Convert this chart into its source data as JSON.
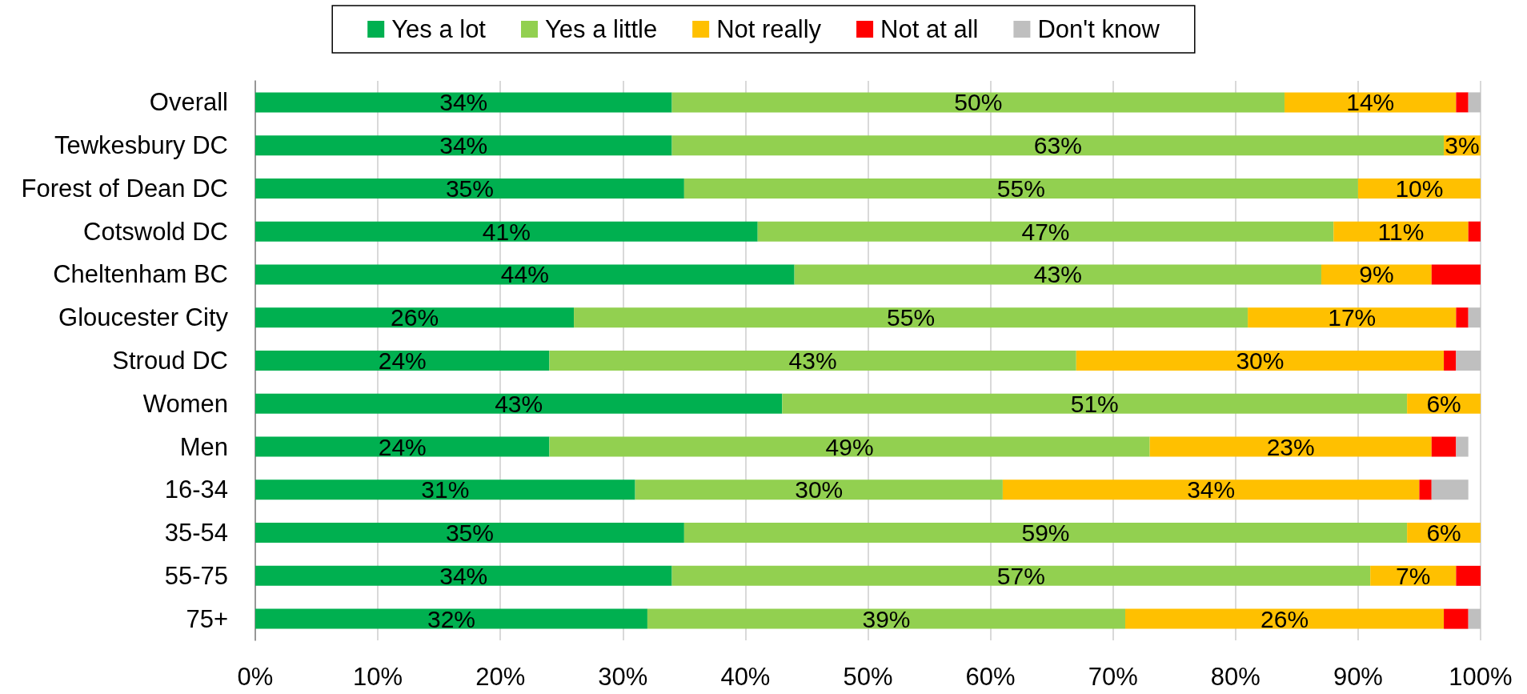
{
  "chart_data": {
    "type": "bar",
    "orientation": "horizontal",
    "stacked": true,
    "categories": [
      "Overall",
      "Tewkesbury DC",
      "Forest of Dean DC",
      "Cotswold DC",
      "Cheltenham BC",
      "Gloucester City",
      "Stroud DC",
      "Women",
      "Men",
      "16-34",
      "35-54",
      "55-75",
      "75+"
    ],
    "series": [
      {
        "name": "Yes a lot",
        "color": "#00b050",
        "values": [
          34,
          34,
          35,
          41,
          44,
          26,
          24,
          43,
          24,
          31,
          35,
          34,
          32
        ],
        "value_labels": [
          "34%",
          "34%",
          "35%",
          "41%",
          "44%",
          "26%",
          "24%",
          "43%",
          "24%",
          "31%",
          "35%",
          "34%",
          "32%"
        ]
      },
      {
        "name": "Yes a little",
        "color": "#92d050",
        "values": [
          50,
          63,
          55,
          47,
          43,
          55,
          43,
          51,
          49,
          30,
          59,
          57,
          39
        ],
        "value_labels": [
          "50%",
          "63%",
          "55%",
          "47%",
          "43%",
          "55%",
          "43%",
          "51%",
          "49%",
          "30%",
          "59%",
          "57%",
          "39%"
        ]
      },
      {
        "name": "Not really",
        "color": "#ffc000",
        "values": [
          14,
          3,
          10,
          11,
          9,
          17,
          30,
          6,
          23,
          34,
          6,
          7,
          26
        ],
        "value_labels": [
          "14%",
          "3%",
          "10%",
          "11%",
          "9%",
          "17%",
          "30%",
          "6%",
          "23%",
          "34%",
          "6%",
          "7%",
          "26%"
        ]
      },
      {
        "name": "Not at all",
        "color": "#ff0000",
        "values": [
          1,
          null,
          null,
          1,
          4,
          1,
          1,
          null,
          2,
          1,
          null,
          2,
          2
        ]
      },
      {
        "name": "Don't know",
        "color": "#bfbfbf",
        "values": [
          1,
          null,
          null,
          null,
          null,
          1,
          2,
          null,
          1,
          3,
          null,
          null,
          1
        ]
      }
    ],
    "xlim": [
      0,
      100
    ],
    "xticks": [
      {
        "value": 0,
        "label": "0%"
      },
      {
        "value": 10,
        "label": "10%"
      },
      {
        "value": 20,
        "label": "20%"
      },
      {
        "value": 30,
        "label": "30%"
      },
      {
        "value": 40,
        "label": "40%"
      },
      {
        "value": 50,
        "label": "50%"
      },
      {
        "value": 60,
        "label": "60%"
      },
      {
        "value": 70,
        "label": "70%"
      },
      {
        "value": 80,
        "label": "80%"
      },
      {
        "value": 90,
        "label": "90%"
      },
      {
        "value": 100,
        "label": "100%"
      }
    ],
    "grid": "x",
    "legend": "top"
  }
}
